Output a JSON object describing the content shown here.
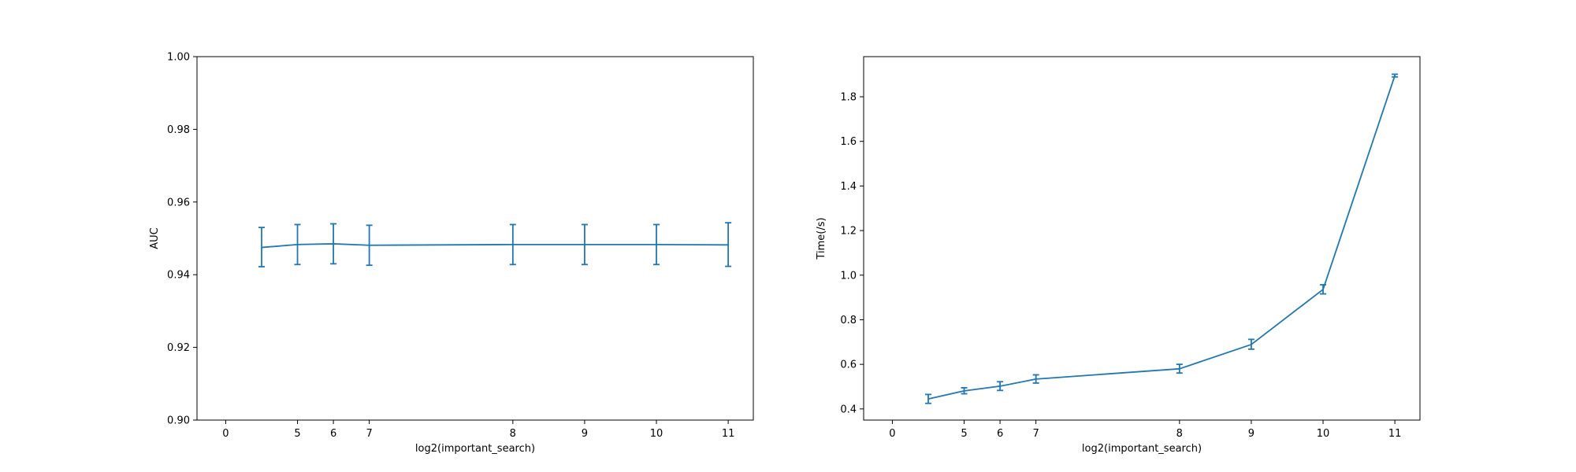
{
  "chart_data": [
    {
      "type": "line",
      "error_bars": true,
      "xlabel": "log2(important_search)",
      "ylabel": "AUC",
      "xlim": [
        -2.075,
        11.075
      ],
      "ylim": [
        0.9,
        1.0
      ],
      "xticks": [
        0,
        5,
        6,
        7,
        8,
        9,
        10,
        11
      ],
      "xtick_labels": [
        "0",
        "5",
        "6",
        "7",
        "8",
        "9",
        "10",
        "11"
      ],
      "yticks": [
        0.9,
        0.92,
        0.94,
        0.96,
        0.98,
        1.0
      ],
      "ytick_labels": [
        "0.90",
        "0.92",
        "0.94",
        "0.96",
        "0.98",
        "1.00"
      ],
      "grid": false,
      "series": [
        {
          "color": "#1f77b4",
          "points": [
            {
              "x_label": "0",
              "y": 0.9475,
              "lower": 0.9422,
              "upper": 0.953
            },
            {
              "x_label": "5",
              "y": 0.9483,
              "lower": 0.9428,
              "upper": 0.9538
            },
            {
              "x_label": "6",
              "y": 0.9485,
              "lower": 0.943,
              "upper": 0.954
            },
            {
              "x_label": "7",
              "y": 0.9481,
              "lower": 0.9426,
              "upper": 0.9536
            },
            {
              "x_label": "8",
              "y": 0.9483,
              "lower": 0.9428,
              "upper": 0.9538
            },
            {
              "x_label": "9",
              "y": 0.9483,
              "lower": 0.9428,
              "upper": 0.9538
            },
            {
              "x_label": "10",
              "y": 0.9483,
              "lower": 0.9428,
              "upper": 0.9538
            },
            {
              "x_label": "11",
              "y": 0.9482,
              "lower": 0.9423,
              "upper": 0.9543
            }
          ]
        }
      ]
    },
    {
      "type": "line",
      "error_bars": true,
      "xlabel": "log2(important_search)",
      "ylabel": "Time(/s)",
      "xlim": [
        -2.075,
        11.075
      ],
      "ylim": [
        0.35,
        1.98
      ],
      "xticks": [
        0,
        5,
        6,
        7,
        8,
        9,
        10,
        11
      ],
      "xtick_labels": [
        "0",
        "5",
        "6",
        "7",
        "8",
        "9",
        "10",
        "11"
      ],
      "yticks": [
        0.4,
        0.6,
        0.8,
        1.0,
        1.2,
        1.4,
        1.6,
        1.8
      ],
      "ytick_labels": [
        "0.4",
        "0.6",
        "0.8",
        "1.0",
        "1.2",
        "1.4",
        "1.6",
        "1.8"
      ],
      "grid": false,
      "series": [
        {
          "color": "#1f77b4",
          "points": [
            {
              "x_label": "0",
              "y": 0.445,
              "lower": 0.425,
              "upper": 0.465
            },
            {
              "x_label": "5",
              "y": 0.481,
              "lower": 0.468,
              "upper": 0.495
            },
            {
              "x_label": "6",
              "y": 0.502,
              "lower": 0.483,
              "upper": 0.522
            },
            {
              "x_label": "7",
              "y": 0.534,
              "lower": 0.516,
              "upper": 0.553
            },
            {
              "x_label": "8",
              "y": 0.58,
              "lower": 0.561,
              "upper": 0.6
            },
            {
              "x_label": "9",
              "y": 0.689,
              "lower": 0.668,
              "upper": 0.712
            },
            {
              "x_label": "10",
              "y": 0.936,
              "lower": 0.916,
              "upper": 0.957
            },
            {
              "x_label": "11",
              "y": 1.895,
              "lower": 1.889,
              "upper": 1.901
            }
          ]
        }
      ]
    }
  ]
}
